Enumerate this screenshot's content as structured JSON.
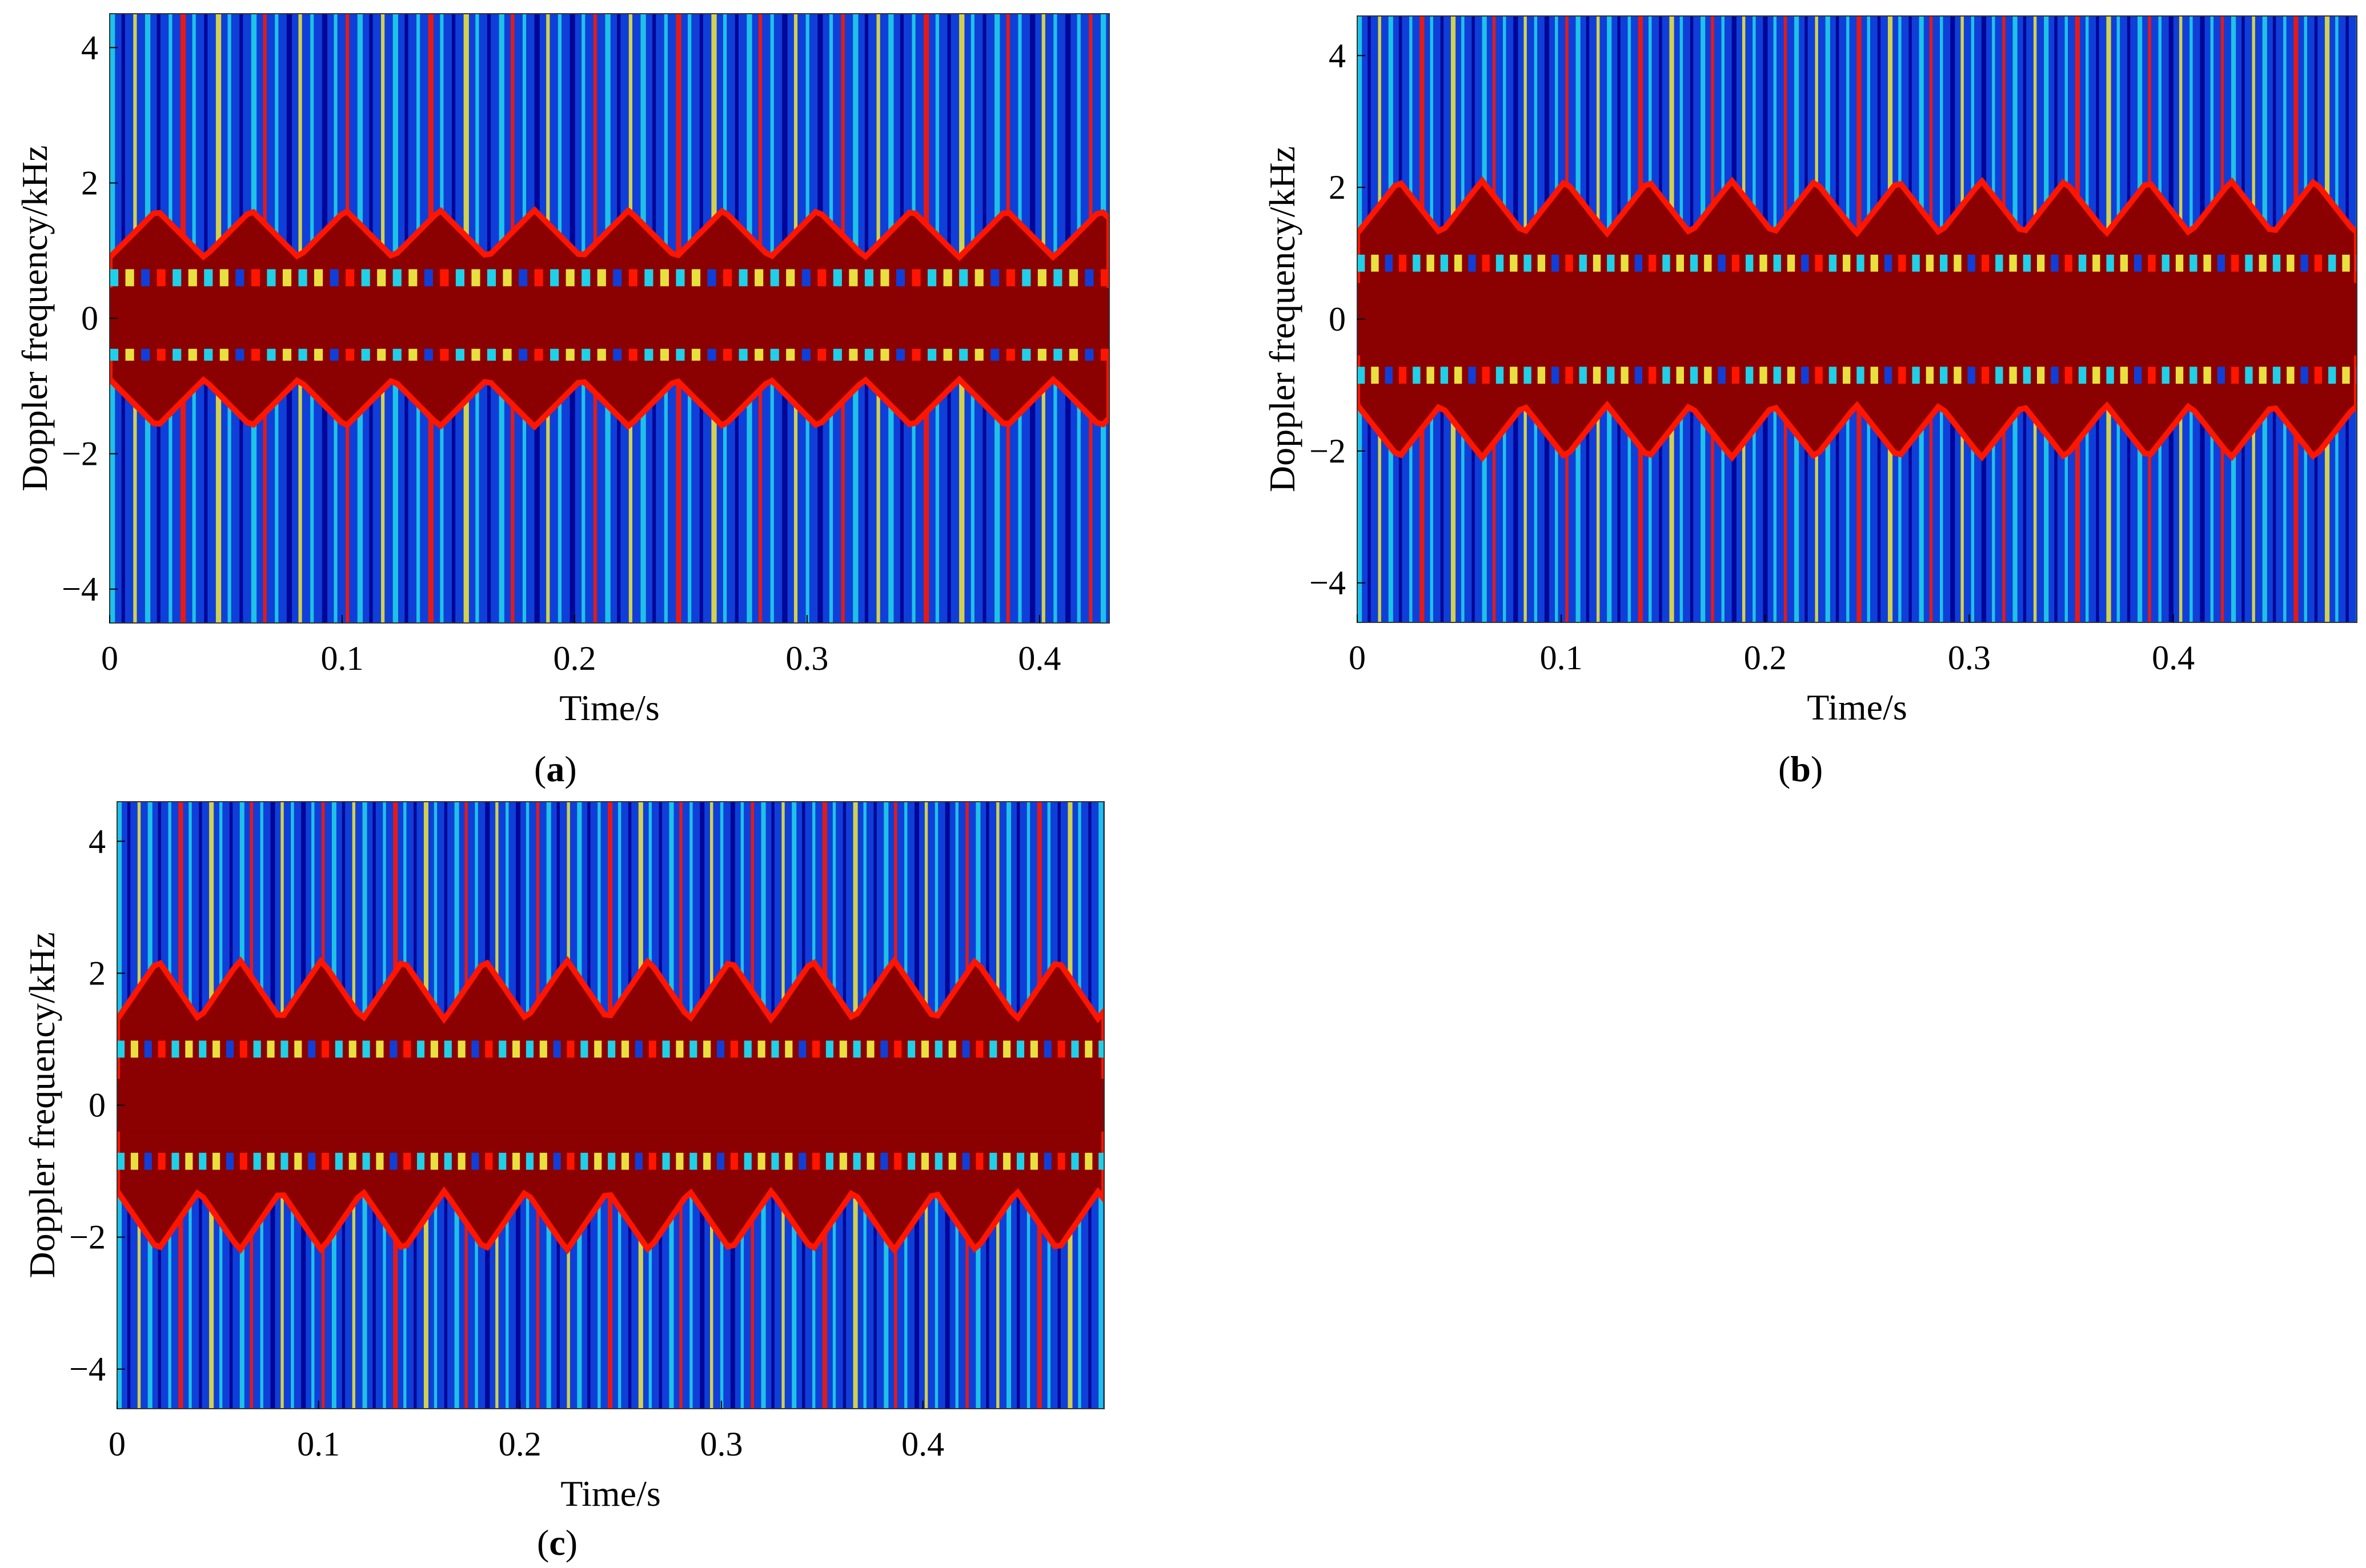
{
  "figure": {
    "panels": [
      {
        "caption_open": "(",
        "caption_letter": "a",
        "caption_close": ")"
      },
      {
        "caption_open": "(",
        "caption_letter": "b",
        "caption_close": ")"
      },
      {
        "caption_open": "(",
        "caption_letter": "c",
        "caption_close": ")"
      }
    ]
  },
  "colors": {
    "bg_dark_blue": "#00008f",
    "blue": "#0f3fd8",
    "cyan": "#20d0e8",
    "yellow": "#e8e040",
    "red": "#ff1500",
    "dark_red": "#8b0000"
  },
  "chart_data": [
    {
      "type": "heatmap",
      "title": "",
      "xlabel": "Time/s",
      "ylabel": "Doppler frequency/kHz",
      "xlim": [
        0,
        0.43
      ],
      "ylim": [
        -4.5,
        4.5
      ],
      "xticks": [
        0,
        0.1,
        0.2,
        0.3,
        0.4
      ],
      "xtick_labels": [
        "0",
        "0.1",
        "0.2",
        "0.3",
        "0.4"
      ],
      "yticks": [
        -4,
        -2,
        0,
        2,
        4
      ],
      "ytick_labels": [
        "−4",
        "−2",
        "0",
        "2",
        "4"
      ],
      "period_s": 0.0406,
      "band_edge_khz": 1.6,
      "micro_doppler_peak_khz": 1.6,
      "micro_doppler_trough_khz": 0.9,
      "center_band_khz": 0.45,
      "stripe_rows_khz": [
        0.6,
        -0.5
      ],
      "grid": false,
      "legend": "none"
    },
    {
      "type": "heatmap",
      "title": "",
      "xlabel": "Time/s",
      "ylabel": "Doppler frequency/kHz",
      "xlim": [
        0,
        0.49
      ],
      "ylim": [
        -4.6,
        4.6
      ],
      "xticks": [
        0,
        0.1,
        0.2,
        0.3,
        0.4
      ],
      "xtick_labels": [
        "0",
        "0.1",
        "0.2",
        "0.3",
        "0.4"
      ],
      "yticks": [
        -4,
        -2,
        0,
        2,
        4
      ],
      "ytick_labels": [
        "−4",
        "−2",
        "0",
        "2",
        "4"
      ],
      "period_s": 0.0408,
      "band_edge_khz": 2.1,
      "micro_doppler_peak_khz": 2.1,
      "micro_doppler_trough_khz": 1.3,
      "center_band_khz": 0.55,
      "stripe_rows_khz": [
        0.85,
        -0.85
      ],
      "grid": false,
      "legend": "none"
    },
    {
      "type": "heatmap",
      "title": "",
      "xlabel": "Time/s",
      "ylabel": "Doppler frequency/kHz",
      "xlim": [
        0,
        0.49
      ],
      "ylim": [
        -4.6,
        4.6
      ],
      "xticks": [
        0,
        0.1,
        0.2,
        0.3,
        0.4
      ],
      "xtick_labels": [
        "0",
        "0.1",
        "0.2",
        "0.3",
        "0.4"
      ],
      "yticks": [
        -4,
        -2,
        0,
        2,
        4
      ],
      "ytick_labels": [
        "−4",
        "−2",
        "0",
        "2",
        "4"
      ],
      "period_s": 0.0406,
      "band_edge_khz": 2.2,
      "micro_doppler_peak_khz": 2.2,
      "micro_doppler_trough_khz": 1.3,
      "center_band_khz": 0.4,
      "stripe_rows_khz": [
        0.85,
        -0.85
      ],
      "grid": false,
      "legend": "none"
    }
  ]
}
